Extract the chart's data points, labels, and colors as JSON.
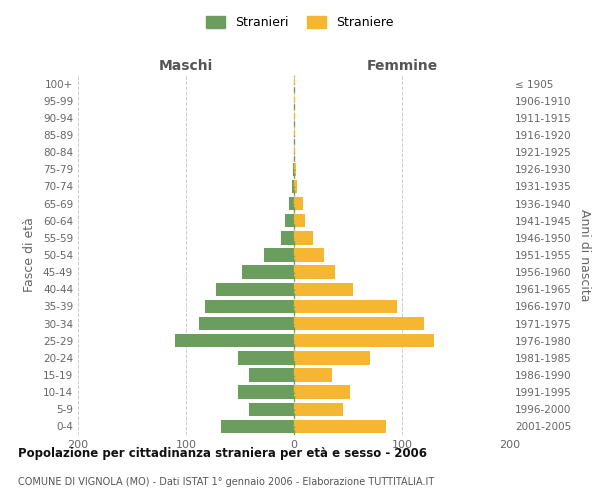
{
  "age_groups_bottom_to_top": [
    "0-4",
    "5-9",
    "10-14",
    "15-19",
    "20-24",
    "25-29",
    "30-34",
    "35-39",
    "40-44",
    "45-49",
    "50-54",
    "55-59",
    "60-64",
    "65-69",
    "70-74",
    "75-79",
    "80-84",
    "85-89",
    "90-94",
    "95-99",
    "100+"
  ],
  "birth_years_bottom_to_top": [
    "2001-2005",
    "1996-2000",
    "1991-1995",
    "1986-1990",
    "1981-1985",
    "1976-1980",
    "1971-1975",
    "1966-1970",
    "1961-1965",
    "1956-1960",
    "1951-1955",
    "1946-1950",
    "1941-1945",
    "1936-1940",
    "1931-1935",
    "1926-1930",
    "1921-1925",
    "1916-1920",
    "1911-1915",
    "1906-1910",
    "≤ 1905"
  ],
  "maschi_bottom_to_top": [
    68,
    42,
    52,
    42,
    52,
    110,
    88,
    82,
    72,
    48,
    28,
    12,
    8,
    5,
    2,
    1,
    0,
    0,
    0,
    0,
    0
  ],
  "femmine_bottom_to_top": [
    85,
    45,
    52,
    35,
    70,
    130,
    120,
    95,
    55,
    38,
    28,
    18,
    10,
    8,
    3,
    2,
    0,
    0,
    0,
    0,
    0
  ],
  "male_color": "#6b9e5e",
  "female_color": "#f5b731",
  "background_color": "#ffffff",
  "grid_color": "#cccccc",
  "xlim": 200,
  "title": "Popolazione per cittadinanza straniera per età e sesso - 2006",
  "subtitle": "COMUNE DI VIGNOLA (MO) - Dati ISTAT 1° gennaio 2006 - Elaborazione TUTTITALIA.IT",
  "xlabel_left": "Maschi",
  "xlabel_right": "Femmine",
  "ylabel_left": "Fasce di età",
  "ylabel_right": "Anni di nascita",
  "legend_stranieri": "Stranieri",
  "legend_straniere": "Straniere"
}
